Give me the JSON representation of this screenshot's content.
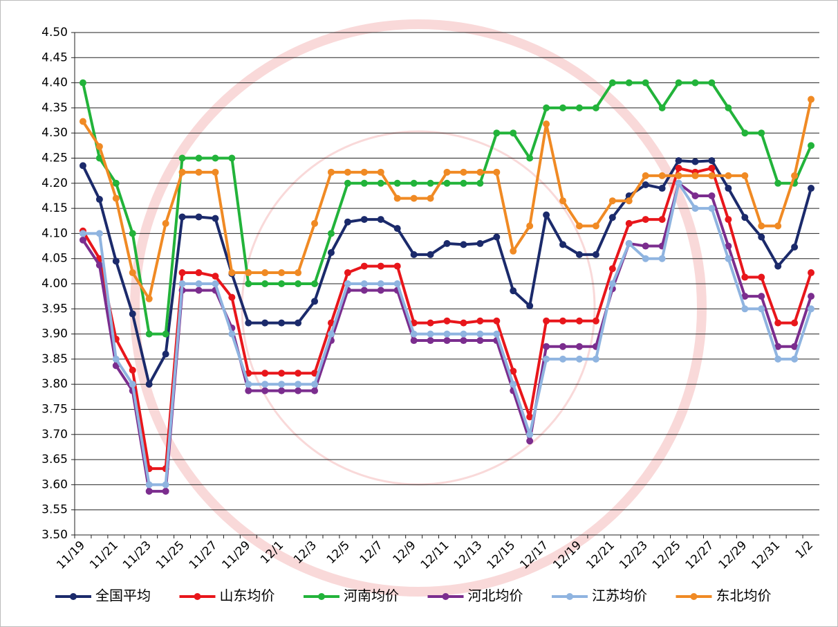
{
  "chart_data": {
    "type": "line",
    "categories": [
      "11/19",
      null,
      "11/21",
      null,
      "11/23",
      null,
      "11/25",
      null,
      "11/27",
      null,
      "11/29",
      null,
      "12/1",
      null,
      "12/3",
      null,
      "12/5",
      null,
      "12/7",
      null,
      "12/9",
      null,
      "12/11",
      null,
      "12/13",
      null,
      "12/15",
      null,
      "12/17",
      null,
      "12/19",
      null,
      "12/21",
      null,
      "12/23",
      null,
      "12/25",
      null,
      "12/27",
      null,
      "12/29",
      null,
      "12/31",
      null,
      "1/2"
    ],
    "series": [
      {
        "name": "全国平均",
        "color": "#1b2a6b",
        "values": [
          4.235,
          4.168,
          4.045,
          3.94,
          3.8,
          3.86,
          4.133,
          4.133,
          4.13,
          4.02,
          3.922,
          3.922,
          3.922,
          3.922,
          3.965,
          4.062,
          4.123,
          4.128,
          4.128,
          4.11,
          4.058,
          4.058,
          4.08,
          4.078,
          4.08,
          4.093,
          3.986,
          3.956,
          4.137,
          4.078,
          4.058,
          4.058,
          4.132,
          4.175,
          4.197,
          4.19,
          4.245,
          4.243,
          4.245,
          4.19,
          4.132,
          4.093,
          4.035,
          4.073,
          4.19
        ]
      },
      {
        "name": "山东均价",
        "color": "#e8161b",
        "values": [
          4.105,
          4.05,
          3.89,
          3.828,
          3.632,
          3.632,
          4.022,
          4.022,
          4.015,
          3.973,
          3.822,
          3.822,
          3.822,
          3.822,
          3.822,
          3.922,
          4.022,
          4.035,
          4.035,
          4.035,
          3.922,
          3.922,
          3.926,
          3.922,
          3.926,
          3.926,
          3.826,
          3.735,
          3.926,
          3.926,
          3.926,
          3.926,
          4.03,
          4.12,
          4.128,
          4.128,
          4.23,
          4.222,
          4.23,
          4.128,
          4.013,
          4.013,
          3.922,
          3.922,
          4.022
        ]
      },
      {
        "name": "河南均价",
        "color": "#22b33a",
        "values": [
          4.4,
          4.25,
          4.2,
          4.1,
          3.9,
          3.9,
          4.25,
          4.25,
          4.25,
          4.25,
          4.0,
          4.0,
          4.0,
          4.0,
          4.0,
          4.1,
          4.2,
          4.2,
          4.2,
          4.2,
          4.2,
          4.2,
          4.2,
          4.2,
          4.2,
          4.3,
          4.3,
          4.25,
          4.35,
          4.35,
          4.35,
          4.35,
          4.4,
          4.4,
          4.4,
          4.35,
          4.4,
          4.4,
          4.4,
          4.35,
          4.3,
          4.3,
          4.2,
          4.2,
          4.275
        ]
      },
      {
        "name": "河北均价",
        "color": "#7b2d8e",
        "values": [
          4.087,
          4.037,
          3.837,
          3.787,
          3.587,
          3.587,
          3.987,
          3.987,
          3.987,
          3.912,
          3.787,
          3.787,
          3.787,
          3.787,
          3.787,
          3.887,
          3.987,
          3.987,
          3.987,
          3.987,
          3.887,
          3.887,
          3.887,
          3.887,
          3.887,
          3.887,
          3.787,
          3.687,
          3.875,
          3.875,
          3.875,
          3.875,
          3.99,
          4.08,
          4.075,
          4.075,
          4.2,
          4.175,
          4.175,
          4.075,
          3.975,
          3.975,
          3.875,
          3.875,
          3.975
        ]
      },
      {
        "name": "江苏均价",
        "color": "#8fb4e0",
        "values": [
          4.1,
          4.1,
          3.85,
          3.8,
          3.6,
          3.6,
          4.0,
          4.0,
          4.0,
          3.9,
          3.8,
          3.8,
          3.8,
          3.8,
          3.8,
          3.9,
          4.0,
          4.0,
          4.0,
          4.0,
          3.9,
          3.9,
          3.9,
          3.9,
          3.9,
          3.9,
          3.8,
          3.7,
          3.85,
          3.85,
          3.85,
          3.85,
          4.0,
          4.08,
          4.05,
          4.05,
          4.2,
          4.15,
          4.15,
          4.05,
          3.95,
          3.95,
          3.85,
          3.85,
          3.95
        ]
      },
      {
        "name": "东北均价",
        "color": "#f08a24",
        "values": [
          4.323,
          4.273,
          4.17,
          4.022,
          3.97,
          4.12,
          4.222,
          4.222,
          4.222,
          4.022,
          4.022,
          4.022,
          4.022,
          4.022,
          4.12,
          4.222,
          4.222,
          4.222,
          4.222,
          4.17,
          4.17,
          4.17,
          4.222,
          4.222,
          4.222,
          4.222,
          4.065,
          4.115,
          4.318,
          4.165,
          4.115,
          4.115,
          4.165,
          4.165,
          4.215,
          4.215,
          4.215,
          4.215,
          4.215,
          4.215,
          4.215,
          4.115,
          4.115,
          4.215,
          4.367
        ]
      }
    ],
    "ylim": [
      3.5,
      4.5
    ],
    "yticks": [
      {
        "value": 3.5,
        "label": "3.50"
      },
      3.55,
      {
        "value": 3.6,
        "label": "3.60"
      },
      3.65,
      {
        "value": 3.7,
        "label": "3.70"
      },
      3.75,
      {
        "value": 3.8,
        "label": "3.80"
      },
      3.85,
      {
        "value": 3.9,
        "label": "3.90"
      },
      3.95,
      {
        "value": 4.0,
        "label": "4.00"
      },
      4.05,
      {
        "value": 4.1,
        "label": "4.10"
      },
      4.15,
      {
        "value": 4.2,
        "label": "4.20"
      },
      4.25,
      {
        "value": 4.3,
        "label": "4.30"
      },
      4.35,
      {
        "value": 4.4,
        "label": "4.40"
      },
      4.45,
      {
        "value": 4.5,
        "label": "4.50"
      }
    ],
    "grid": true,
    "legend": "bottom"
  }
}
